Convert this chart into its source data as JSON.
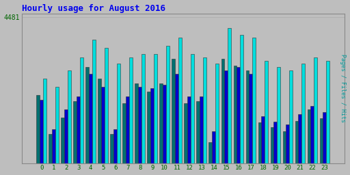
{
  "title": "Hourly usage for August 2016",
  "ylabel": "Pages / Files / Hits",
  "hours": [
    0,
    1,
    2,
    3,
    4,
    5,
    6,
    7,
    8,
    9,
    10,
    11,
    12,
    13,
    14,
    15,
    16,
    17,
    18,
    19,
    20,
    21,
    22,
    23
  ],
  "pages": [
    2100,
    900,
    1400,
    1900,
    2950,
    2600,
    900,
    1850,
    2450,
    2200,
    2450,
    3200,
    1850,
    1900,
    650,
    3200,
    3000,
    2850,
    1250,
    1100,
    980,
    1300,
    1650,
    1380
  ],
  "files": [
    1950,
    1050,
    1650,
    2050,
    2750,
    2350,
    1050,
    2050,
    2350,
    2300,
    2400,
    2750,
    2050,
    2050,
    980,
    2850,
    2950,
    2750,
    1450,
    1270,
    1200,
    1500,
    1750,
    1570
  ],
  "hits": [
    2600,
    2350,
    2850,
    3250,
    3800,
    3550,
    3050,
    3250,
    3350,
    3350,
    3600,
    3850,
    3350,
    3250,
    3050,
    4150,
    3950,
    3850,
    3150,
    2950,
    2850,
    3050,
    3250,
    3150
  ],
  "color_pages": "#007070",
  "color_files": "#0000CD",
  "color_hits": "#00DDDD",
  "bg_color": "#BEBEBE",
  "plot_bg": "#BEBEBE",
  "title_color": "#0000EE",
  "ylabel_color": "#009999",
  "tick_color": "#006600",
  "ytick_label": "4481",
  "ytick_value": 4481,
  "ymax": 4600,
  "bar_width": 0.27,
  "figsize": [
    5.12,
    2.56
  ],
  "dpi": 100
}
